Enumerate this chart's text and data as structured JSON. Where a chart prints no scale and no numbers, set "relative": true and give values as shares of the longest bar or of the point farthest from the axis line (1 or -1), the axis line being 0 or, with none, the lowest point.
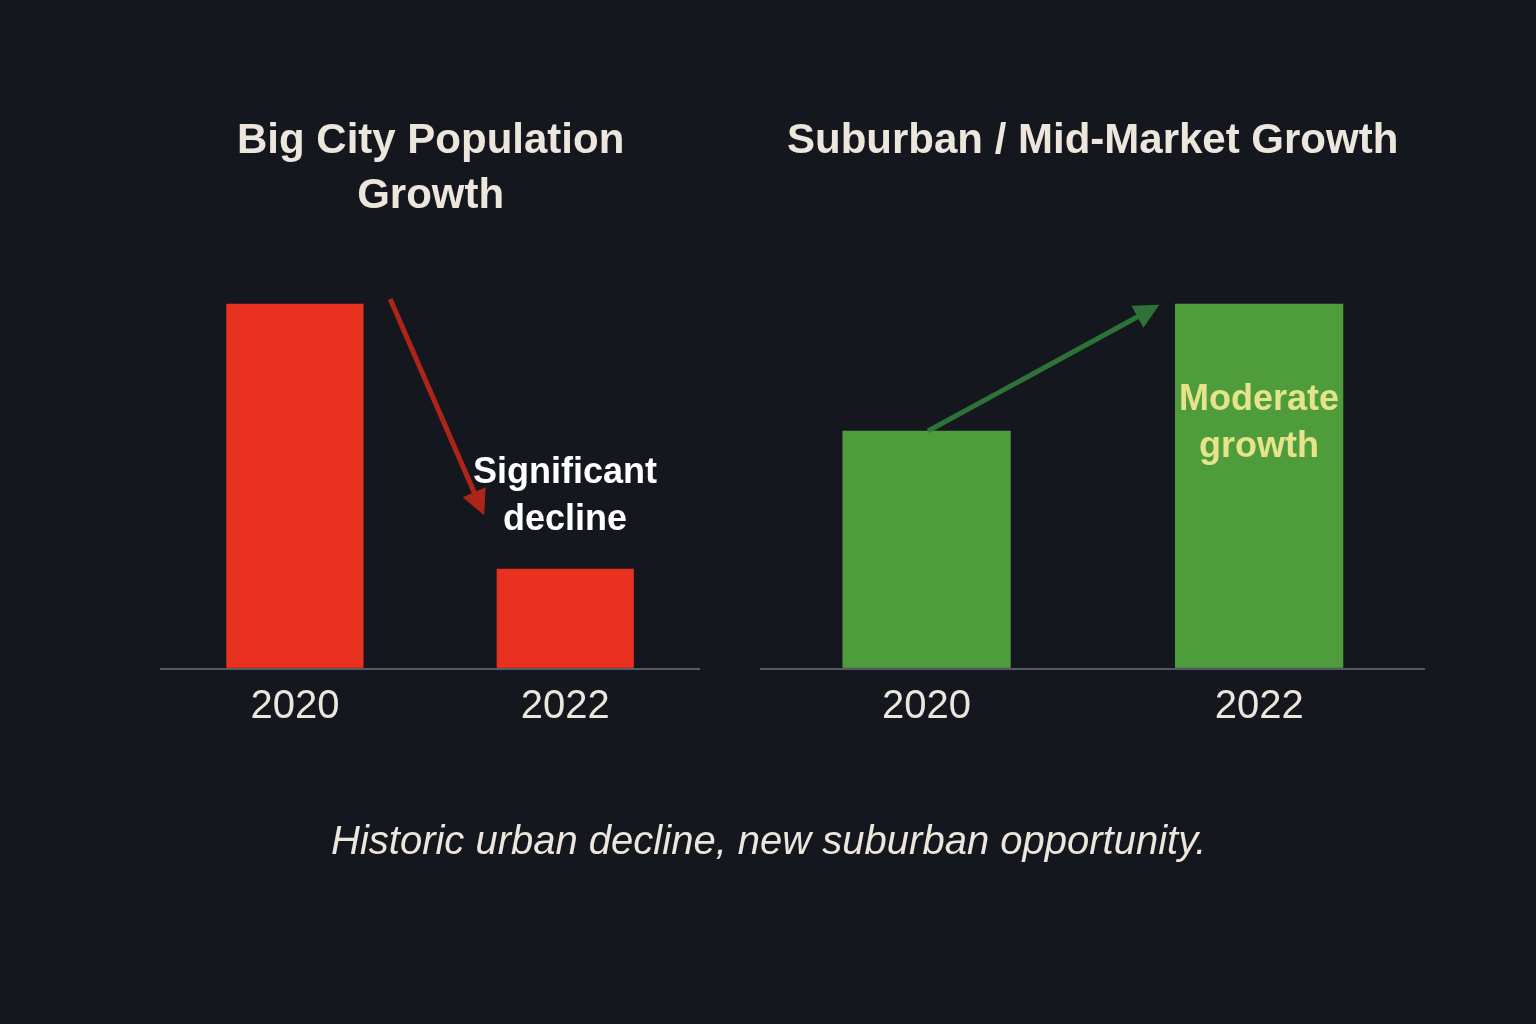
{
  "chart_data": [
    {
      "type": "bar",
      "title": "Big City Population\nGrowth",
      "categories": [
        "2020",
        "2022"
      ],
      "values": [
        1,
        0.27
      ],
      "color": "#e8321f",
      "relative": true,
      "annotations": [
        {
          "text": "Significant\ndecline",
          "x": "2022",
          "y": 0.27
        },
        "Historic urban decline, new suburban opportunity."
      ]
    },
    {
      "type": "bar",
      "title": "Suburban / Mid-Market Growth",
      "categories": [
        "2020",
        "2022"
      ],
      "values": [
        0.65,
        1
      ],
      "color": "#4f9c3c",
      "relative": true,
      "annotations": [
        {
          "text": "Moderate\ngrowth",
          "x": "2022",
          "y": 1
        }
      ]
    }
  ]
}
